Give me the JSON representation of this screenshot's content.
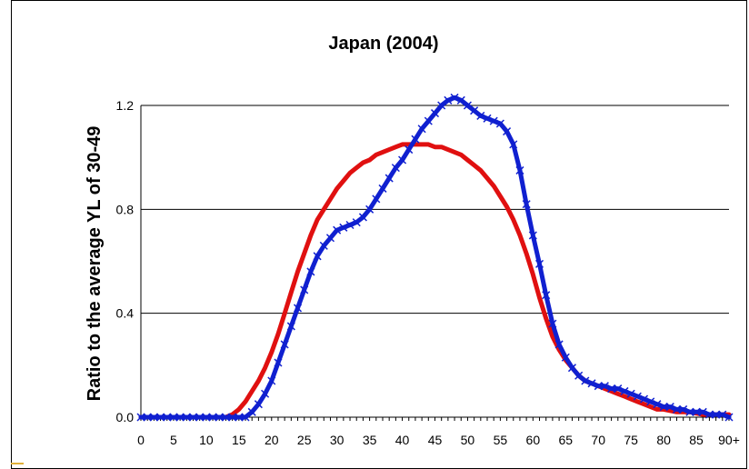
{
  "colors": {
    "background": "#ffffff",
    "frame_border": "#000000",
    "gridline": "#000000",
    "series_red": "#e01010",
    "series_blue": "#1020d0",
    "accent": "#e0b03a"
  },
  "chart_data": {
    "type": "line",
    "title": "Japan (2004)",
    "xlabel": "",
    "ylabel": "Ratio to the average YL of 30-49",
    "xlim": [
      0,
      90
    ],
    "ylim": [
      0,
      1.2
    ],
    "yticks": [
      0.0,
      0.4,
      0.8,
      1.2
    ],
    "ytick_labels": [
      "0.0",
      "0.4",
      "0.8",
      "1.2"
    ],
    "xticks": [
      0,
      5,
      10,
      15,
      20,
      25,
      30,
      35,
      40,
      45,
      50,
      55,
      60,
      65,
      70,
      75,
      80,
      85,
      90
    ],
    "xtick_labels": [
      "0",
      "5",
      "10",
      "15",
      "20",
      "25",
      "30",
      "35",
      "40",
      "45",
      "50",
      "55",
      "60",
      "65",
      "70",
      "75",
      "80",
      "85",
      "90+"
    ],
    "grid": "horizontal",
    "series": [
      {
        "color": "#e01010",
        "marker": "none",
        "x": [
          0,
          5,
          10,
          13,
          14,
          15,
          16,
          17,
          18,
          19,
          20,
          21,
          22,
          23,
          24,
          25,
          26,
          27,
          28,
          29,
          30,
          31,
          32,
          33,
          34,
          35,
          36,
          37,
          38,
          39,
          40,
          41,
          42,
          43,
          44,
          45,
          46,
          47,
          48,
          49,
          50,
          51,
          52,
          53,
          54,
          55,
          56,
          57,
          58,
          59,
          60,
          61,
          62,
          63,
          64,
          65,
          66,
          67,
          68,
          69,
          70,
          71,
          72,
          73,
          74,
          75,
          76,
          77,
          78,
          79,
          80,
          82,
          84,
          86,
          88,
          90
        ],
        "y": [
          0.0,
          0.0,
          0.0,
          0.0,
          0.01,
          0.03,
          0.06,
          0.1,
          0.14,
          0.19,
          0.25,
          0.32,
          0.4,
          0.48,
          0.56,
          0.63,
          0.7,
          0.76,
          0.8,
          0.84,
          0.88,
          0.91,
          0.94,
          0.96,
          0.98,
          0.99,
          1.01,
          1.02,
          1.03,
          1.04,
          1.05,
          1.05,
          1.05,
          1.05,
          1.05,
          1.04,
          1.04,
          1.03,
          1.02,
          1.01,
          0.99,
          0.97,
          0.95,
          0.92,
          0.89,
          0.85,
          0.81,
          0.76,
          0.7,
          0.63,
          0.55,
          0.46,
          0.38,
          0.31,
          0.26,
          0.22,
          0.19,
          0.16,
          0.14,
          0.13,
          0.12,
          0.11,
          0.1,
          0.09,
          0.08,
          0.07,
          0.06,
          0.05,
          0.04,
          0.03,
          0.03,
          0.02,
          0.02,
          0.01,
          0.01,
          0.01
        ]
      },
      {
        "color": "#1020d0",
        "marker": "x",
        "x": [
          0,
          1,
          2,
          3,
          4,
          5,
          6,
          7,
          8,
          9,
          10,
          11,
          12,
          13,
          14,
          15,
          16,
          17,
          18,
          19,
          20,
          21,
          22,
          23,
          24,
          25,
          26,
          27,
          28,
          29,
          30,
          31,
          32,
          33,
          34,
          35,
          36,
          37,
          38,
          39,
          40,
          41,
          42,
          43,
          44,
          45,
          46,
          47,
          48,
          49,
          50,
          51,
          52,
          53,
          54,
          55,
          56,
          57,
          58,
          59,
          60,
          61,
          62,
          63,
          64,
          65,
          66,
          67,
          68,
          69,
          70,
          71,
          72,
          73,
          74,
          75,
          76,
          77,
          78,
          79,
          80,
          81,
          82,
          83,
          84,
          85,
          86,
          87,
          88,
          89,
          90
        ],
        "y": [
          0.0,
          0.0,
          0.0,
          0.0,
          0.0,
          0.0,
          0.0,
          0.0,
          0.0,
          0.0,
          0.0,
          0.0,
          0.0,
          0.0,
          0.0,
          0.0,
          0.0,
          0.02,
          0.05,
          0.09,
          0.14,
          0.21,
          0.28,
          0.35,
          0.42,
          0.49,
          0.56,
          0.62,
          0.66,
          0.69,
          0.72,
          0.73,
          0.74,
          0.75,
          0.77,
          0.8,
          0.84,
          0.88,
          0.92,
          0.96,
          0.99,
          1.03,
          1.07,
          1.11,
          1.14,
          1.17,
          1.2,
          1.22,
          1.23,
          1.22,
          1.2,
          1.18,
          1.16,
          1.15,
          1.14,
          1.13,
          1.1,
          1.05,
          0.95,
          0.82,
          0.7,
          0.59,
          0.47,
          0.36,
          0.28,
          0.23,
          0.19,
          0.16,
          0.14,
          0.13,
          0.12,
          0.12,
          0.11,
          0.11,
          0.1,
          0.09,
          0.08,
          0.07,
          0.06,
          0.05,
          0.04,
          0.04,
          0.03,
          0.03,
          0.02,
          0.02,
          0.02,
          0.01,
          0.01,
          0.01,
          0.0
        ]
      }
    ]
  }
}
